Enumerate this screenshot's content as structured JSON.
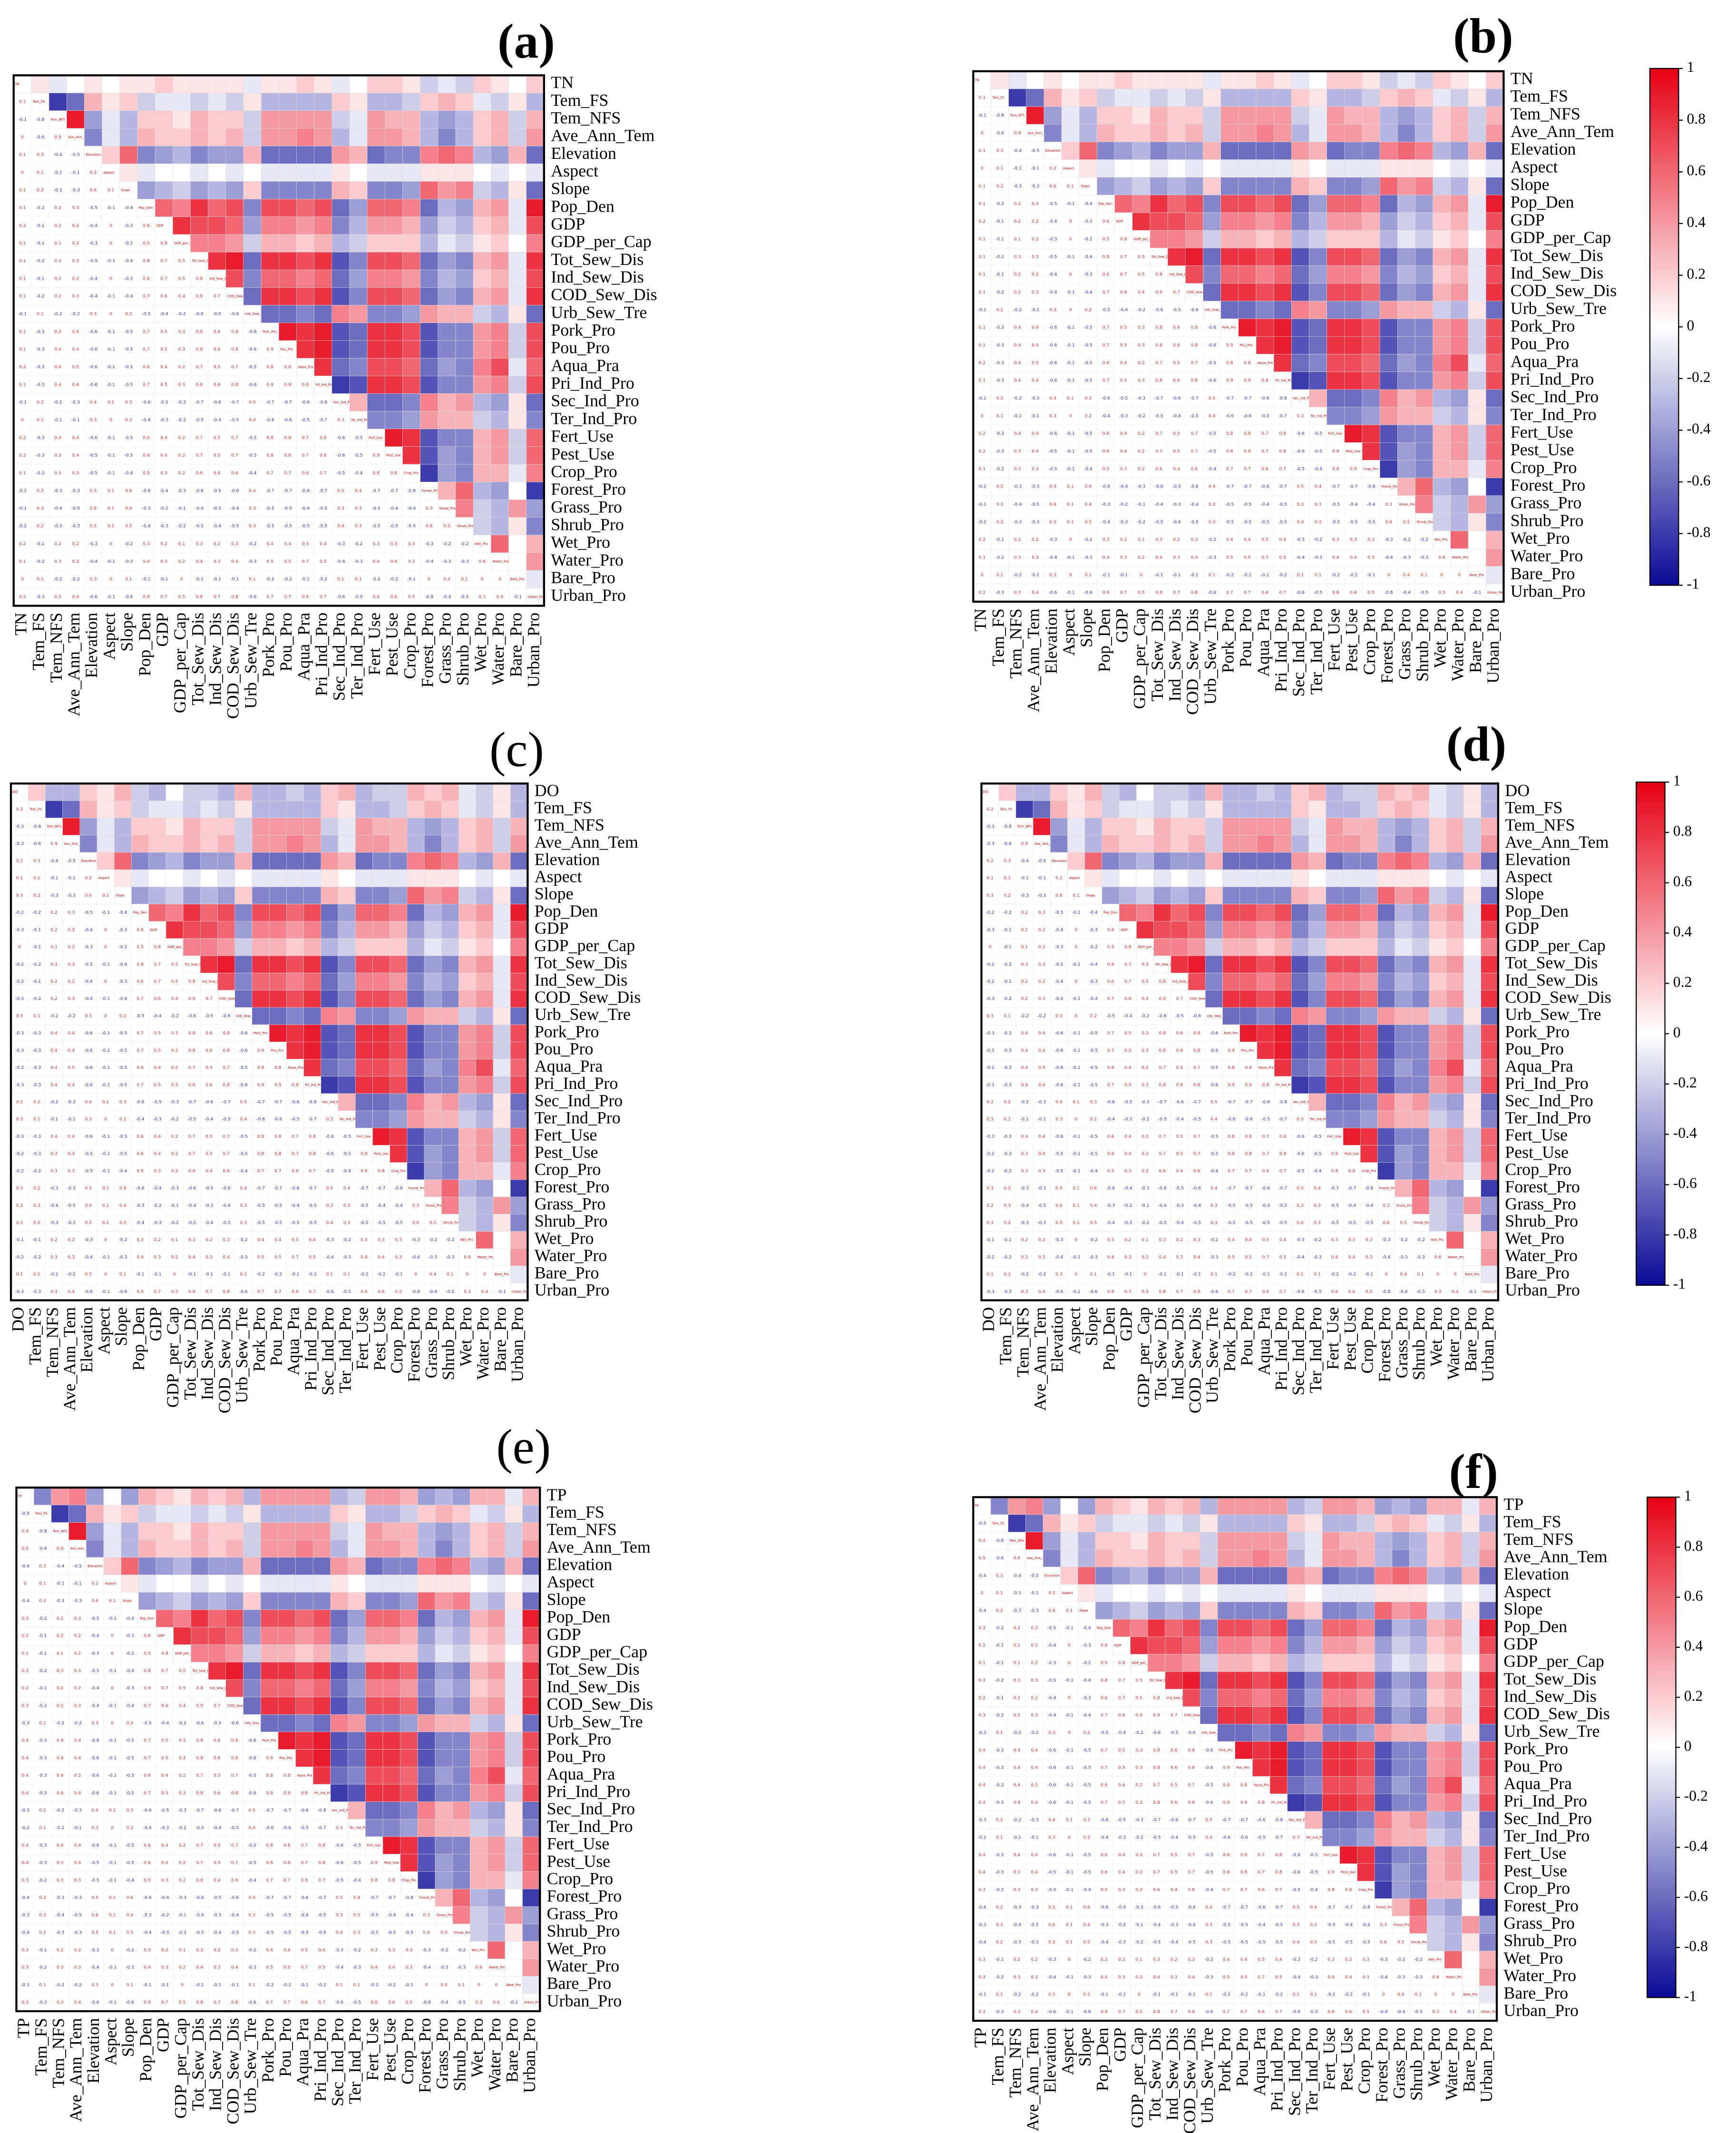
{
  "predictors": [
    "Tem_FS",
    "Tem_NFS",
    "Ave_Ann_Tem",
    "Elevation",
    "Aspect",
    "Slope",
    "Pop_Den",
    "GDP",
    "GDP_per_Cap",
    "Tot_Sew_Dis",
    "Ind_Sew_Dis",
    "COD_Sew_Dis",
    "Urb_Sew_Tre",
    "Pork_Pro",
    "Pou_Pro",
    "Aqua_Pra",
    "Pri_Ind_Pro",
    "Sec_Ind_Pro",
    "Ter_Ind_Pro",
    "Fert_Use",
    "Pest_Use",
    "Crop_Pro",
    "Forest_Pro",
    "Grass_Pro",
    "Shrub_Pro",
    "Wet_Pro",
    "Water_Pro",
    "Bare_Pro",
    "Urban_Pro"
  ],
  "predictor_corr": [
    [
      -0.8
    ],
    [
      -0.6,
      0.9
    ],
    [
      0.3,
      -0.4,
      -0.5
    ],
    [
      0.1,
      -0.1,
      -0.1,
      0.2
    ],
    [
      0.2,
      -0.3,
      -0.3,
      0.6,
      0.1
    ],
    [
      -0.2,
      0.2,
      0.3,
      -0.5,
      -0.1,
      -0.4
    ],
    [
      -0.1,
      0.2,
      0.2,
      -0.4,
      0,
      -0.3,
      0.6
    ],
    [
      -0.1,
      0.1,
      0.2,
      -0.3,
      0,
      -0.2,
      0.5,
      0.8
    ],
    [
      -0.2,
      0.3,
      0.3,
      -0.5,
      -0.1,
      -0.4,
      0.8,
      0.7,
      0.5
    ],
    [
      -0.1,
      0.2,
      0.2,
      -0.4,
      0,
      -0.3,
      0.6,
      0.7,
      0.5,
      0.8
    ],
    [
      -0.2,
      0.2,
      0.3,
      -0.4,
      -0.1,
      -0.4,
      0.7,
      0.6,
      0.4,
      0.9,
      0.7
    ],
    [
      0.1,
      -0.2,
      -0.2,
      0.3,
      0,
      0.2,
      -0.5,
      -0.4,
      -0.2,
      -0.6,
      -0.5,
      -0.6
    ],
    [
      -0.3,
      0.4,
      0.4,
      -0.6,
      -0.1,
      -0.5,
      0.7,
      0.5,
      0.3,
      0.8,
      0.6,
      0.8,
      -0.6
    ],
    [
      -0.3,
      0.4,
      0.4,
      -0.6,
      -0.1,
      -0.5,
      0.7,
      0.5,
      0.3,
      0.8,
      0.6,
      0.8,
      -0.6,
      0.9
    ],
    [
      -0.3,
      0.4,
      0.5,
      -0.6,
      -0.1,
      -0.5,
      0.6,
      0.4,
      0.2,
      0.7,
      0.5,
      0.7,
      -0.5,
      0.8,
      0.8
    ],
    [
      -0.3,
      0.4,
      0.4,
      -0.6,
      -0.1,
      -0.5,
      0.7,
      0.5,
      0.3,
      0.8,
      0.6,
      0.8,
      -0.6,
      0.9,
      0.9,
      0.8
    ],
    [
      0.2,
      -0.2,
      -0.3,
      0.4,
      0.1,
      0.3,
      -0.6,
      -0.5,
      -0.3,
      -0.7,
      -0.6,
      -0.7,
      0.5,
      -0.7,
      -0.7,
      -0.6,
      -0.8
    ],
    [
      0.1,
      -0.1,
      -0.1,
      0.3,
      0,
      0.2,
      -0.4,
      -0.3,
      -0.2,
      -0.5,
      -0.4,
      -0.5,
      0.4,
      -0.6,
      -0.6,
      -0.5,
      -0.7,
      0.3
    ],
    [
      -0.3,
      0.4,
      0.4,
      -0.6,
      -0.1,
      -0.5,
      0.6,
      0.4,
      0.2,
      0.7,
      0.5,
      0.7,
      -0.5,
      0.8,
      0.8,
      0.7,
      0.8,
      -0.6,
      -0.5
    ],
    [
      -0.3,
      0.3,
      0.4,
      -0.5,
      -0.1,
      -0.5,
      0.6,
      0.4,
      0.2,
      0.7,
      0.5,
      0.7,
      -0.5,
      0.8,
      0.8,
      0.7,
      0.8,
      -0.6,
      -0.5,
      0.9
    ],
    [
      -0.2,
      0.3,
      0.3,
      -0.5,
      -0.1,
      -0.4,
      0.5,
      0.3,
      0.2,
      0.6,
      0.4,
      0.6,
      -0.4,
      0.7,
      0.7,
      0.6,
      0.7,
      -0.5,
      -0.4,
      0.8,
      0.8
    ],
    [
      0.2,
      -0.3,
      -0.3,
      0.5,
      0.1,
      0.6,
      -0.6,
      -0.4,
      -0.3,
      -0.6,
      -0.5,
      -0.6,
      0.4,
      -0.7,
      -0.7,
      -0.6,
      -0.7,
      0.5,
      0.4,
      -0.7,
      -0.7,
      -0.8
    ],
    [
      0.3,
      -0.4,
      -0.5,
      0.6,
      0.1,
      0.4,
      -0.3,
      -0.2,
      -0.1,
      -0.4,
      -0.3,
      -0.4,
      0.3,
      -0.5,
      -0.5,
      -0.4,
      -0.5,
      0.3,
      0.3,
      -0.5,
      -0.4,
      -0.4,
      0.3
    ],
    [
      0.2,
      -0.3,
      -0.3,
      0.5,
      0.1,
      0.5,
      -0.4,
      -0.3,
      -0.2,
      -0.5,
      -0.4,
      -0.5,
      0.3,
      -0.5,
      -0.5,
      -0.5,
      -0.5,
      0.4,
      0.3,
      -0.5,
      -0.5,
      -0.5,
      0.6,
      0.5
    ],
    [
      -0.1,
      0.2,
      0.2,
      -0.3,
      0,
      -0.2,
      0.3,
      0.2,
      0.1,
      0.3,
      0.2,
      0.3,
      -0.2,
      0.4,
      0.4,
      0.5,
      0.4,
      -0.3,
      -0.2,
      0.3,
      0.3,
      0.3,
      -0.3,
      -0.2,
      -0.2
    ],
    [
      -0.2,
      0.3,
      0.3,
      -0.4,
      -0.1,
      -0.3,
      0.4,
      0.3,
      0.2,
      0.4,
      0.3,
      0.4,
      -0.3,
      0.5,
      0.5,
      0.7,
      0.5,
      -0.4,
      -0.3,
      0.4,
      0.4,
      0.3,
      -0.4,
      -0.3,
      -0.3,
      0.6
    ],
    [
      0.1,
      -0.2,
      -0.2,
      0.3,
      0,
      0.1,
      -0.1,
      -0.1,
      0,
      -0.1,
      -0.1,
      -0.1,
      0.1,
      -0.2,
      -0.2,
      -0.1,
      -0.2,
      0.1,
      0.1,
      -0.2,
      -0.2,
      -0.1,
      0,
      0.4,
      0.1,
      0,
      0
    ],
    [
      -0.3,
      0.3,
      0.4,
      -0.6,
      -0.1,
      -0.6,
      0.9,
      0.7,
      0.5,
      0.8,
      0.7,
      0.8,
      -0.6,
      0.7,
      0.7,
      0.6,
      0.7,
      -0.6,
      -0.5,
      0.6,
      0.6,
      0.5,
      -0.8,
      -0.4,
      -0.5,
      0.3,
      0.4,
      -0.1
    ]
  ],
  "chart_data": [
    {
      "type": "heatmap",
      "title": "(a)",
      "target": "TN",
      "target_corr": [
        0.1,
        -0.1,
        0,
        0.1,
        0,
        0.1,
        0.1,
        0.2,
        0.1,
        0.1,
        0.1,
        0.1,
        -0.1,
        0.1,
        0.1,
        0.2,
        0.1,
        -0.1,
        0,
        0.2,
        0.2,
        0.1,
        -0.2,
        -0.1,
        -0.2,
        0.2,
        0.1,
        0,
        0.2
      ],
      "clim": [
        -1,
        1
      ],
      "colorbar": false
    },
    {
      "type": "heatmap",
      "title": "(b)",
      "target": "TN",
      "target_corr": [
        0.1,
        -0.1,
        0,
        0.1,
        0,
        0.1,
        0.1,
        0.2,
        0.1,
        0.1,
        0.1,
        0.1,
        -0.1,
        0.1,
        0.1,
        0.2,
        0.1,
        -0.1,
        0,
        0.2,
        0.2,
        0.1,
        -0.2,
        -0.1,
        -0.2,
        0.2,
        0.1,
        0,
        0.2
      ],
      "clim": [
        -1,
        1
      ],
      "colorbar": true,
      "cticks": [
        1,
        0.8,
        0.6,
        0.4,
        0.2,
        0,
        -0.2,
        -0.4,
        -0.6,
        -0.8,
        -1
      ]
    },
    {
      "type": "heatmap",
      "title": "(c)",
      "target": "DO",
      "target_corr": [
        0.2,
        -0.3,
        -0.3,
        0.2,
        0.1,
        0.3,
        -0.2,
        -0.3,
        0,
        -0.2,
        -0.2,
        -0.3,
        0.3,
        -0.3,
        -0.3,
        -0.2,
        -0.3,
        0.2,
        0.3,
        -0.3,
        -0.2,
        -0.2,
        0.3,
        0.2,
        0.3,
        -0.1,
        -0.2,
        0.1,
        -0.3
      ],
      "clim": [
        -1,
        1
      ],
      "colorbar": false
    },
    {
      "type": "heatmap",
      "title": "(d)",
      "target": "DO",
      "target_corr": [
        0.2,
        -0.3,
        -0.3,
        0.2,
        0.1,
        0.3,
        -0.2,
        -0.3,
        0,
        -0.2,
        -0.2,
        -0.3,
        0.3,
        -0.3,
        -0.3,
        -0.2,
        -0.3,
        0.2,
        0.3,
        -0.3,
        -0.2,
        -0.2,
        0.3,
        0.2,
        0.3,
        -0.1,
        -0.2,
        0.1,
        -0.3
      ],
      "clim": [
        -1,
        1
      ],
      "colorbar": true,
      "cticks": [
        1,
        0.8,
        0.6,
        0.4,
        0.2,
        0,
        -0.2,
        -0.4,
        -0.6,
        -0.8,
        -1
      ]
    },
    {
      "type": "heatmap",
      "title": "(e)",
      "target": "TP",
      "target_corr": [
        -0.5,
        0.4,
        0.5,
        -0.4,
        0,
        -0.4,
        0.3,
        0.2,
        0.1,
        0.3,
        0.2,
        0.3,
        -0.3,
        0.4,
        0.4,
        0.4,
        0.4,
        -0.3,
        -0.2,
        0.4,
        0.4,
        0.3,
        -0.4,
        -0.3,
        -0.4,
        0.3,
        0.3,
        -0.1,
        0.3
      ],
      "clim": [
        -1,
        1
      ],
      "colorbar": false
    },
    {
      "type": "heatmap",
      "title": "(f)",
      "target": "TP",
      "target_corr": [
        -0.5,
        0.4,
        0.5,
        -0.4,
        0,
        -0.4,
        0.3,
        0.2,
        0.1,
        0.3,
        0.2,
        0.3,
        -0.3,
        0.4,
        0.4,
        0.4,
        0.4,
        -0.3,
        -0.2,
        0.4,
        0.4,
        0.3,
        -0.4,
        -0.3,
        -0.4,
        0.3,
        0.3,
        -0.1,
        0.3
      ],
      "clim": [
        -1,
        1
      ],
      "colorbar": true,
      "cticks": [
        1,
        0.8,
        0.6,
        0.4,
        0.2,
        0,
        -0.2,
        -0.4,
        -0.6,
        -0.8,
        -1
      ]
    }
  ]
}
